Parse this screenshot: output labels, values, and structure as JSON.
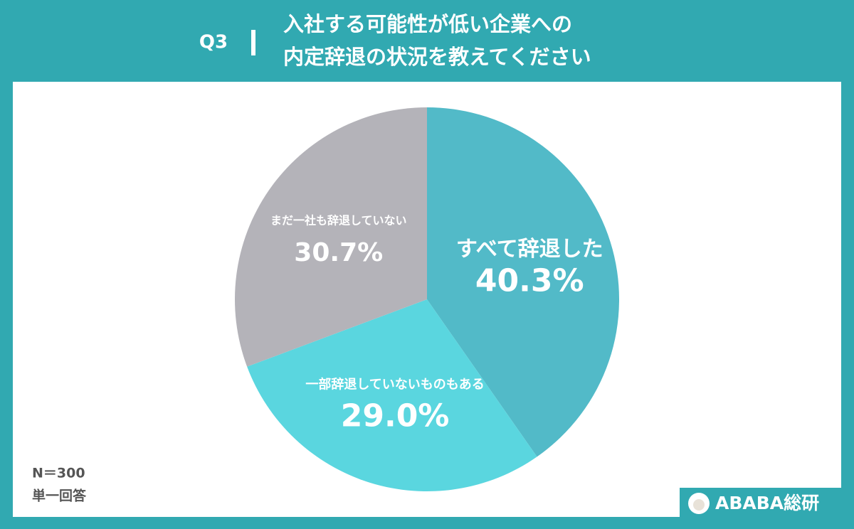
{
  "chart_data": {
    "type": "pie",
    "question": "Q3",
    "title": [
      "入社する可能性が低い企業への",
      "内定辞退の状況を教えてください"
    ],
    "categories": [
      "すべて辞退した",
      "一部辞退していないものもある",
      "まだ一社も辞退していない"
    ],
    "values": [
      40.3,
      29.0,
      30.7
    ],
    "value_labels": [
      "40.3%",
      "29.0%",
      "30.7%"
    ],
    "colors": [
      "#52bac8",
      "#5ad6df",
      "#b4b3b9"
    ],
    "notes": [
      "N＝300",
      "単一回答"
    ],
    "brand": "ABABA総研"
  }
}
